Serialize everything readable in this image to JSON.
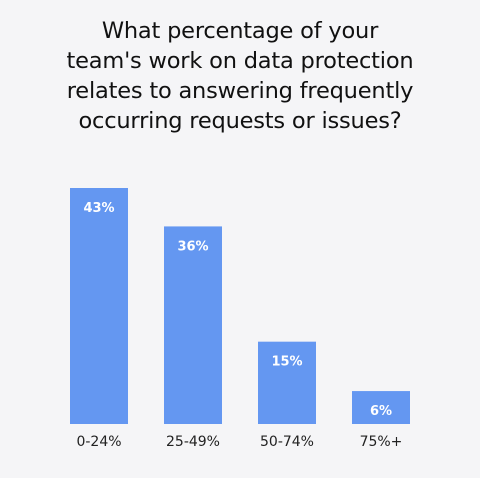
{
  "chart_data": {
    "type": "bar",
    "title_lines": [
      "What percentage of your",
      "team's work on data protection",
      "relates to answering frequently",
      "occurring requests or issues?"
    ],
    "categories": [
      "0-24%",
      "25-49%",
      "50-74%",
      "75%+"
    ],
    "values": [
      43,
      36,
      15,
      6
    ],
    "value_labels": [
      "43%",
      "36%",
      "15%",
      "6%"
    ],
    "xlabel": "",
    "ylabel": "",
    "ylim": [
      0,
      43
    ],
    "grid": false,
    "legend": "none",
    "bar_color": "#6497f1",
    "value_label_color": "#ffffff",
    "background": "#f5f5f7"
  }
}
